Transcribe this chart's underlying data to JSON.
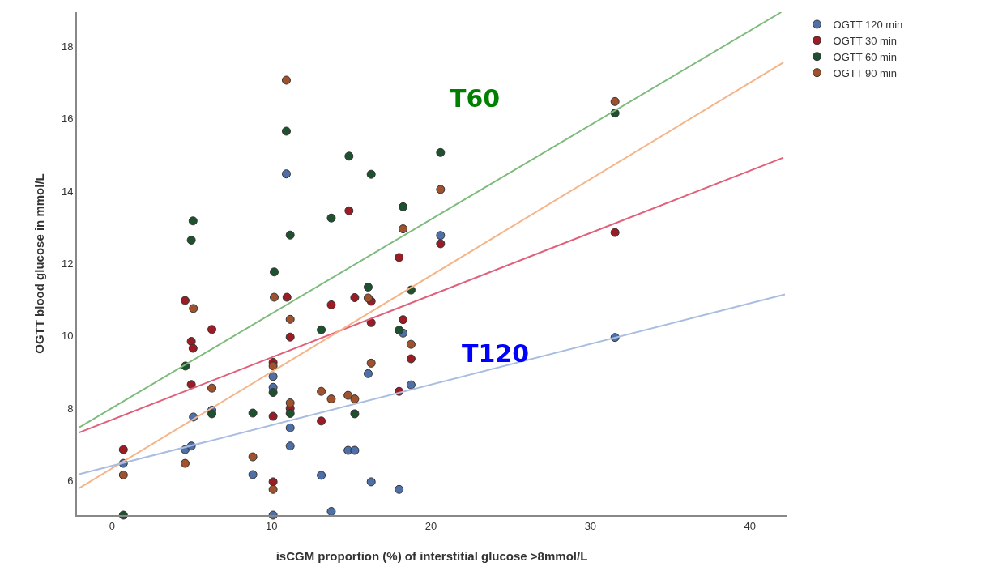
{
  "chart_data": {
    "type": "scatter",
    "xlabel": "isCGM proportion (%) of interstitial glucose >8mmol/L",
    "ylabel": "OGTT blood glucose in mmol/L",
    "xlim": [
      -2.2,
      42.3
    ],
    "xticks": [
      0,
      10,
      20,
      30,
      40
    ],
    "ylim": [
      5.05,
      18.95
    ],
    "yticks": [
      6,
      8,
      10,
      12,
      14,
      16,
      18
    ],
    "grid": false,
    "legend": "top right",
    "marker": "circle",
    "annotations": [
      "T60",
      "T120"
    ],
    "series": [
      {
        "name": "OGTT 120 min",
        "color": "#4f6fa8",
        "x": [
          10.93,
          10.1,
          10.1,
          6.26,
          5.1,
          11.17,
          11.17,
          4.58,
          4.97,
          0.71,
          8.83,
          10.1,
          20.6,
          18.25,
          16.06,
          18.75,
          14.8,
          15.22,
          13.12,
          16.25,
          18.0,
          13.75,
          31.54
        ],
        "values": [
          14.48,
          8.88,
          8.58,
          7.95,
          7.76,
          7.46,
          6.96,
          6.86,
          6.96,
          6.48,
          6.17,
          5.05,
          12.78,
          10.08,
          8.96,
          8.65,
          6.84,
          6.84,
          6.15,
          5.97,
          5.76,
          5.15,
          9.96
        ]
      },
      {
        "name": "OGTT 30 min",
        "color": "#9b1c24",
        "x": [
          4.58,
          10.97,
          11.17,
          6.26,
          4.97,
          5.08,
          10.1,
          4.97,
          10.1,
          11.17,
          0.71,
          10.1,
          14.86,
          20.6,
          18.0,
          16.25,
          15.22,
          13.75,
          16.25,
          18.25,
          18.75,
          18.0,
          13.12,
          31.54
        ],
        "values": [
          10.98,
          11.07,
          9.97,
          10.18,
          9.85,
          9.66,
          9.27,
          8.66,
          7.78,
          8.0,
          6.86,
          5.97,
          13.46,
          12.55,
          12.17,
          10.96,
          11.06,
          10.86,
          10.37,
          10.45,
          9.37,
          8.47,
          7.65,
          12.86
        ]
      },
      {
        "name": "OGTT 60 min",
        "color": "#1e5130",
        "x": [
          10.93,
          5.08,
          4.97,
          11.17,
          10.17,
          4.6,
          10.1,
          6.26,
          8.83,
          11.17,
          0.71,
          14.86,
          16.25,
          20.6,
          13.75,
          18.25,
          16.06,
          18.75,
          13.12,
          18.0,
          15.22,
          31.54
        ],
        "values": [
          15.66,
          13.18,
          12.65,
          12.79,
          11.77,
          9.17,
          8.44,
          7.85,
          7.87,
          7.86,
          5.05,
          14.97,
          14.47,
          15.07,
          13.26,
          13.57,
          11.35,
          11.27,
          10.17,
          10.16,
          7.85,
          16.16
        ]
      },
      {
        "name": "OGTT 90 min",
        "color": "#a0522d",
        "x": [
          10.93,
          5.1,
          10.17,
          11.17,
          10.1,
          6.26,
          11.17,
          0.71,
          4.58,
          8.83,
          10.1,
          20.6,
          18.25,
          16.06,
          18.75,
          16.25,
          13.12,
          13.75,
          14.8,
          15.22,
          31.54
        ],
        "values": [
          17.07,
          10.76,
          11.07,
          10.46,
          9.17,
          8.56,
          8.15,
          6.16,
          6.48,
          6.66,
          5.76,
          14.05,
          12.96,
          11.05,
          9.77,
          9.25,
          8.47,
          8.26,
          8.36,
          8.26,
          16.48
        ]
      },
      {
        "type": "line",
        "marker": "none",
        "color": "#e0607a",
        "x": [
          -2.07,
          42.1
        ],
        "values": [
          7.33,
          14.93
        ]
      },
      {
        "type": "line",
        "marker": "none",
        "color": "#7dbb7d",
        "x": [
          -2.07,
          41.97
        ],
        "values": [
          7.47,
          18.95
        ]
      },
      {
        "type": "line",
        "marker": "none",
        "color": "#f5b58a",
        "x": [
          -2.07,
          42.1
        ],
        "values": [
          5.79,
          17.56
        ]
      },
      {
        "type": "line",
        "marker": "none",
        "color": "#a9bde0",
        "x": [
          -2.07,
          42.2
        ],
        "values": [
          6.18,
          11.15
        ]
      }
    ]
  }
}
